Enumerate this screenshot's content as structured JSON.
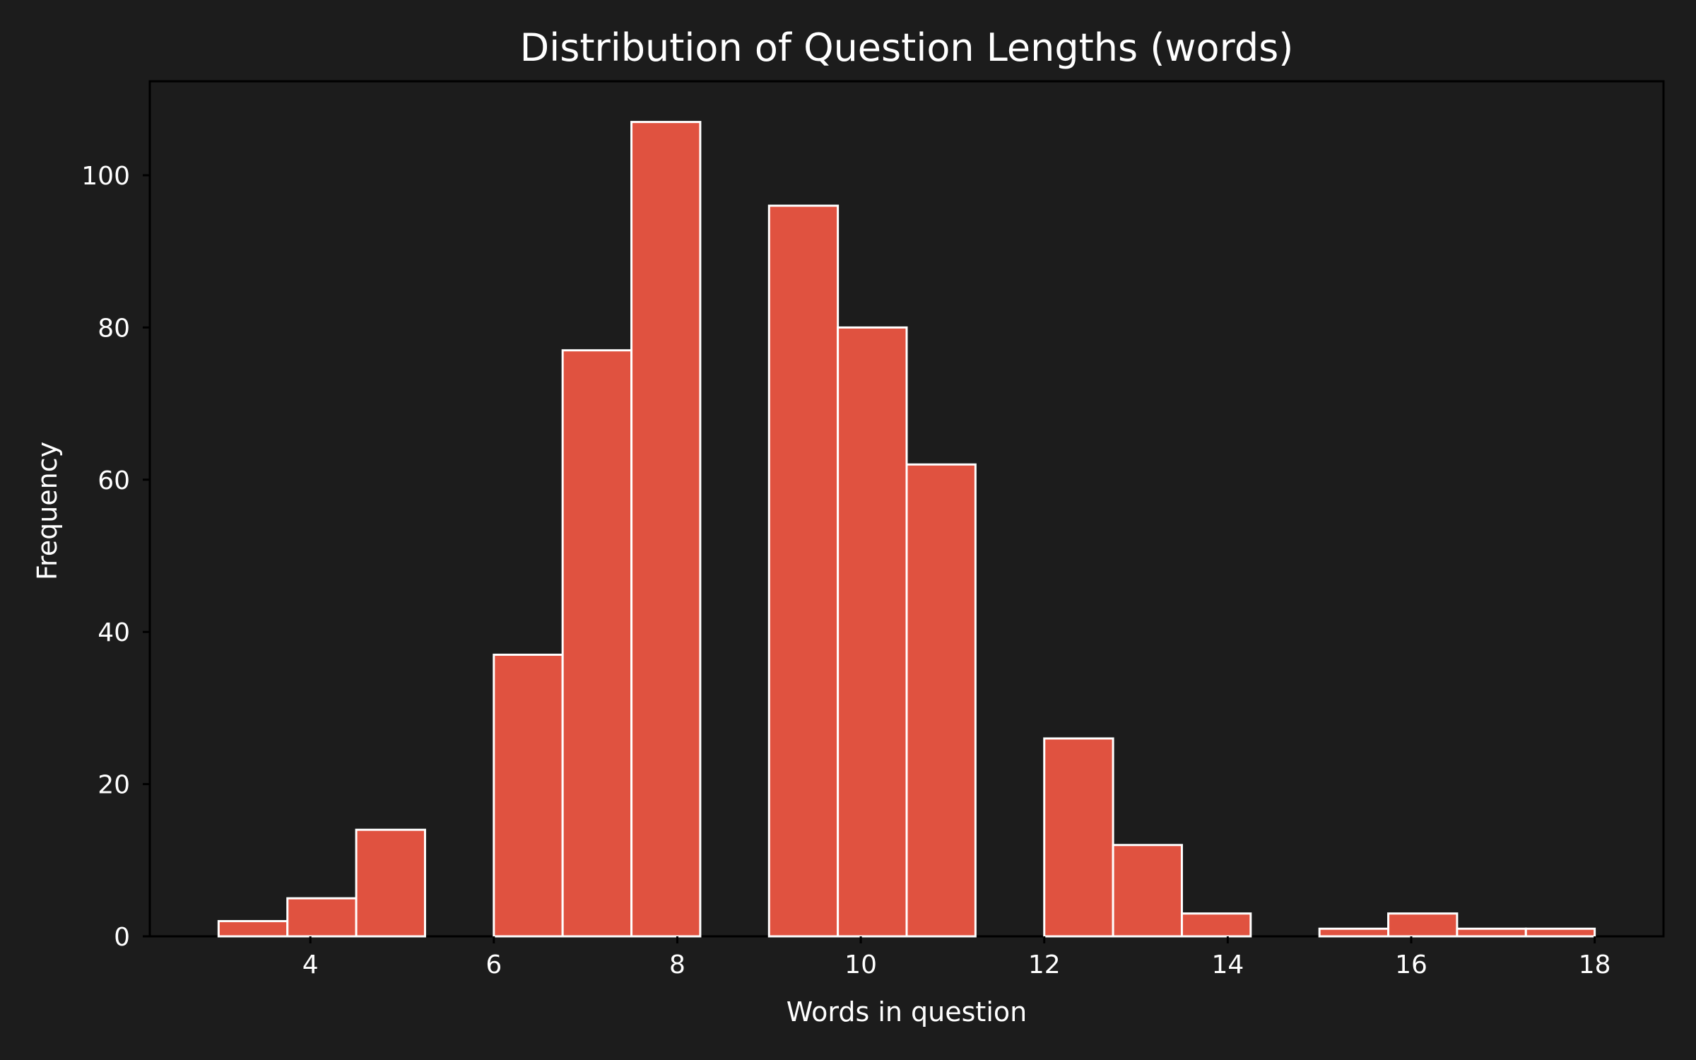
{
  "chart_data": {
    "type": "bar",
    "subtype": "histogram",
    "title": "Distribution of Question Lengths (words)",
    "xlabel": "Words in question",
    "ylabel": "Frequency",
    "xlim": [
      2.25,
      18.75
    ],
    "ylim": [
      0,
      112.35
    ],
    "xticks": [
      4,
      6,
      8,
      10,
      12,
      14,
      16,
      18
    ],
    "yticks": [
      0,
      20,
      40,
      60,
      80,
      100
    ],
    "bin_edges": [
      3,
      3.75,
      4.5,
      5.25,
      6,
      6.75,
      7.5,
      8.25,
      9,
      9.75,
      10.5,
      11.25,
      12,
      12.75,
      13.5,
      14.25,
      15,
      15.75,
      16.5,
      17.25,
      18
    ],
    "values": [
      2,
      5,
      14,
      0,
      37,
      77,
      107,
      0,
      96,
      80,
      62,
      0,
      26,
      12,
      3,
      0,
      1,
      3,
      1,
      1
    ],
    "bar_color": "#e05240",
    "edge_color": "#ffffff",
    "background": "#1c1c1c",
    "grid": false,
    "legend": "none"
  }
}
